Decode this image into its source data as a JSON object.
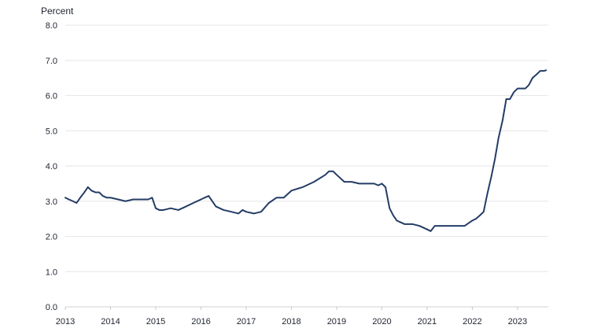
{
  "chart_data": {
    "type": "line",
    "ylabel": "Percent",
    "ylim": [
      0,
      8
    ],
    "yticks": [
      {
        "value": 0,
        "label": "0.0"
      },
      {
        "value": 1,
        "label": "1.0"
      },
      {
        "value": 2,
        "label": "2.0"
      },
      {
        "value": 3,
        "label": "3.0"
      },
      {
        "value": 4,
        "label": "4.0"
      },
      {
        "value": 5,
        "label": "5.0"
      },
      {
        "value": 6,
        "label": "6.0"
      },
      {
        "value": 7,
        "label": "7.0"
      },
      {
        "value": 8,
        "label": "8.0"
      }
    ],
    "xlim": [
      2013.0,
      2023.68
    ],
    "xticks": [
      {
        "value": 2013,
        "label": "2013"
      },
      {
        "value": 2014,
        "label": "2014"
      },
      {
        "value": 2015,
        "label": "2015"
      },
      {
        "value": 2016,
        "label": "2016"
      },
      {
        "value": 2017,
        "label": "2017"
      },
      {
        "value": 2018,
        "label": "2018"
      },
      {
        "value": 2019,
        "label": "2019"
      },
      {
        "value": 2020,
        "label": "2020"
      },
      {
        "value": 2021,
        "label": "2021"
      },
      {
        "value": 2022,
        "label": "2022"
      },
      {
        "value": 2023,
        "label": "2023"
      }
    ],
    "grid": true,
    "line_color": "#243c66",
    "grid_color": "#e6e6e6",
    "series": [
      {
        "x": [
          2013.0,
          2013.08,
          2013.17,
          2013.25,
          2013.33,
          2013.42,
          2013.5,
          2013.58,
          2013.67,
          2013.75,
          2013.83,
          2013.92,
          2014.0,
          2014.17,
          2014.33,
          2014.5,
          2014.67,
          2014.83,
          2014.92,
          2015.0,
          2015.08,
          2015.17,
          2015.33,
          2015.5,
          2015.67,
          2015.83,
          2016.0,
          2016.08,
          2016.17,
          2016.33,
          2016.5,
          2016.67,
          2016.83,
          2016.92,
          2017.0,
          2017.17,
          2017.33,
          2017.5,
          2017.67,
          2017.83,
          2018.0,
          2018.25,
          2018.5,
          2018.75,
          2018.83,
          2018.92,
          2019.0,
          2019.17,
          2019.33,
          2019.5,
          2019.67,
          2019.83,
          2019.92,
          2020.0,
          2020.08,
          2020.17,
          2020.25,
          2020.33,
          2020.5,
          2020.67,
          2020.83,
          2021.0,
          2021.08,
          2021.17,
          2021.33,
          2021.5,
          2021.67,
          2021.83,
          2022.0,
          2022.08,
          2022.17,
          2022.25,
          2022.33,
          2022.42,
          2022.5,
          2022.58,
          2022.67,
          2022.75,
          2022.83,
          2022.92,
          2023.0,
          2023.08,
          2023.17,
          2023.25,
          2023.33,
          2023.42,
          2023.5,
          2023.58,
          2023.63
        ],
        "values": [
          3.1,
          3.05,
          3.0,
          2.95,
          3.1,
          3.25,
          3.4,
          3.3,
          3.25,
          3.25,
          3.15,
          3.1,
          3.1,
          3.05,
          3.0,
          3.05,
          3.05,
          3.05,
          3.1,
          2.8,
          2.75,
          2.75,
          2.8,
          2.75,
          2.85,
          2.95,
          3.05,
          3.1,
          3.15,
          2.85,
          2.75,
          2.7,
          2.65,
          2.75,
          2.7,
          2.65,
          2.7,
          2.95,
          3.1,
          3.1,
          3.3,
          3.4,
          3.55,
          3.75,
          3.85,
          3.85,
          3.75,
          3.55,
          3.55,
          3.5,
          3.5,
          3.5,
          3.45,
          3.5,
          3.4,
          2.8,
          2.6,
          2.45,
          2.35,
          2.35,
          2.3,
          2.2,
          2.15,
          2.3,
          2.3,
          2.3,
          2.3,
          2.3,
          2.45,
          2.5,
          2.6,
          2.7,
          3.2,
          3.7,
          4.2,
          4.8,
          5.3,
          5.9,
          5.9,
          6.1,
          6.2,
          6.2,
          6.2,
          6.3,
          6.5,
          6.6,
          6.7,
          6.7,
          6.72
        ]
      }
    ]
  }
}
